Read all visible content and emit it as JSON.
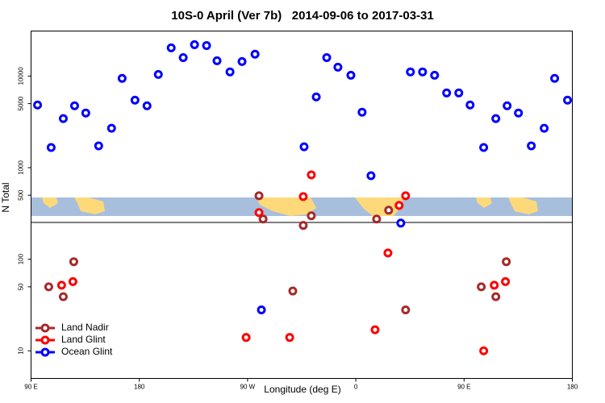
{
  "chart_data": {
    "type": "scatter",
    "title": "10S-0 April (Ver 7b)   2014-09-06 to 2017-03-31",
    "x_label": "Longitude (deg E)",
    "y_label": "N Total",
    "xlim": [
      90,
      540
    ],
    "xticks": [
      {
        "value": 90,
        "label": "90 E"
      },
      {
        "value": 180,
        "label": "180"
      },
      {
        "value": 270,
        "label": "90 W"
      },
      {
        "value": 360,
        "label": "0"
      },
      {
        "value": 450,
        "label": "90 E"
      },
      {
        "value": 540,
        "label": "180"
      }
    ],
    "ylim": [
      5,
      31000
    ],
    "yticks": [
      10,
      50,
      100,
      500,
      1000,
      5000,
      10000
    ],
    "y_log": true,
    "legend": "lower left",
    "series": [
      {
        "name": "Land Nadir",
        "color": "#a52a2a",
        "x": [
          279.5,
          282.9,
          316.3,
          323,
          377.3,
          387.3,
          104.7,
          116.8,
          125.5,
          307.6,
          401.4,
          464.3,
          476.4,
          485.1
        ],
        "values": [
          493,
          275,
          234,
          298,
          275,
          343,
          50,
          39,
          94,
          45,
          28,
          50,
          39,
          94
        ]
      },
      {
        "name": "Land Glint",
        "color": "#ff0000",
        "x": [
          279.5,
          316.3,
          323,
          396,
          401.4,
          115.4,
          124.8,
          268.8,
          305,
          376,
          386.7,
          466.3,
          475.1,
          484.4
        ],
        "values": [
          323,
          483,
          834,
          387,
          493,
          52,
          57,
          14,
          14,
          17,
          117,
          10,
          52,
          57
        ]
      },
      {
        "name": "Ocean Glint",
        "color": "#0000ff",
        "x": [
          95.4,
          106.7,
          116.8,
          126.2,
          135.5,
          146.2,
          156.9,
          165.7,
          176.4,
          186.4,
          195.8,
          206.5,
          216.5,
          225.9,
          235.9,
          244.6,
          255.4,
          265.4,
          276.2,
          317,
          327.1,
          335.8,
          345.1,
          355.9,
          365.2,
          372.6,
          397.4,
          405.4,
          415.5,
          425.5,
          435.5,
          445.6,
          455,
          466.3,
          476.4,
          485.8,
          495.2,
          505.9,
          516.6,
          525.3,
          536,
          281.5
        ],
        "values": [
          4830,
          1660,
          3430,
          4730,
          3950,
          1730,
          2690,
          9420,
          5460,
          4730,
          10400,
          20300,
          15900,
          22000,
          21500,
          14700,
          11100,
          14400,
          17300,
          1690,
          5920,
          15900,
          12500,
          10200,
          4030,
          817,
          248,
          11100,
          11100,
          10200,
          6540,
          6540,
          4830,
          1660,
          3430,
          4730,
          3950,
          1730,
          2690,
          9420,
          5460,
          28
        ]
      }
    ]
  }
}
